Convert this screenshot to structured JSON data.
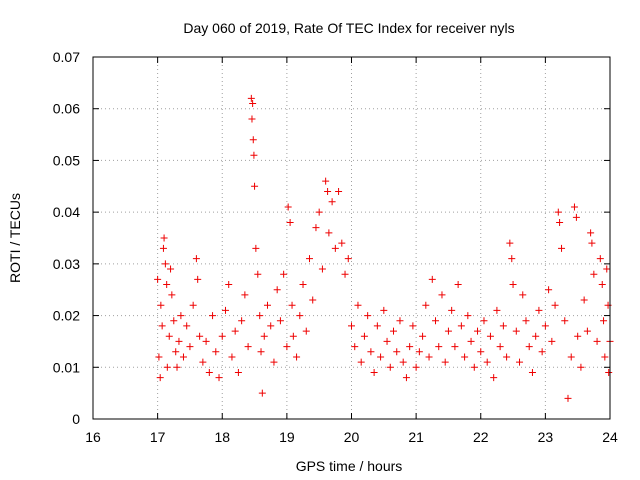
{
  "chart_data": {
    "type": "scatter",
    "title": "Day 060 of 2019, Rate Of TEC Index for receiver nyls",
    "xlabel": "GPS time / hours",
    "ylabel": "ROTI / TECUs",
    "xlim": [
      16,
      24
    ],
    "ylim": [
      0,
      0.07
    ],
    "x_ticks": [
      "16",
      "17",
      "18",
      "19",
      "20",
      "21",
      "22",
      "23",
      "24"
    ],
    "y_ticks": [
      "0",
      "0.01",
      "0.02",
      "0.03",
      "0.04",
      "0.05",
      "0.06",
      "0.07"
    ],
    "grid": true,
    "marker": "+",
    "color": "#ee0000",
    "series": [
      {
        "name": "ROTI",
        "points": [
          [
            17.0,
            0.027
          ],
          [
            17.02,
            0.012
          ],
          [
            17.04,
            0.008
          ],
          [
            17.05,
            0.022
          ],
          [
            17.07,
            0.018
          ],
          [
            17.09,
            0.033
          ],
          [
            17.1,
            0.035
          ],
          [
            17.12,
            0.03
          ],
          [
            17.14,
            0.026
          ],
          [
            17.15,
            0.01
          ],
          [
            17.18,
            0.016
          ],
          [
            17.2,
            0.029
          ],
          [
            17.22,
            0.024
          ],
          [
            17.25,
            0.019
          ],
          [
            17.28,
            0.013
          ],
          [
            17.3,
            0.01
          ],
          [
            17.33,
            0.015
          ],
          [
            17.36,
            0.02
          ],
          [
            17.4,
            0.012
          ],
          [
            17.45,
            0.018
          ],
          [
            17.5,
            0.014
          ],
          [
            17.55,
            0.022
          ],
          [
            17.6,
            0.031
          ],
          [
            17.62,
            0.027
          ],
          [
            17.65,
            0.016
          ],
          [
            17.7,
            0.011
          ],
          [
            17.75,
            0.015
          ],
          [
            17.8,
            0.009
          ],
          [
            17.85,
            0.02
          ],
          [
            17.9,
            0.013
          ],
          [
            17.95,
            0.008
          ],
          [
            18.0,
            0.016
          ],
          [
            18.05,
            0.021
          ],
          [
            18.1,
            0.026
          ],
          [
            18.15,
            0.012
          ],
          [
            18.2,
            0.017
          ],
          [
            18.25,
            0.009
          ],
          [
            18.3,
            0.019
          ],
          [
            18.35,
            0.024
          ],
          [
            18.4,
            0.014
          ],
          [
            18.45,
            0.062
          ],
          [
            18.46,
            0.058
          ],
          [
            18.47,
            0.061
          ],
          [
            18.48,
            0.054
          ],
          [
            18.49,
            0.051
          ],
          [
            18.5,
            0.045
          ],
          [
            18.52,
            0.033
          ],
          [
            18.55,
            0.028
          ],
          [
            18.58,
            0.02
          ],
          [
            18.6,
            0.013
          ],
          [
            18.62,
            0.005
          ],
          [
            18.65,
            0.016
          ],
          [
            18.7,
            0.022
          ],
          [
            18.75,
            0.018
          ],
          [
            18.8,
            0.011
          ],
          [
            18.85,
            0.025
          ],
          [
            18.9,
            0.019
          ],
          [
            18.95,
            0.028
          ],
          [
            19.0,
            0.014
          ],
          [
            19.02,
            0.041
          ],
          [
            19.05,
            0.038
          ],
          [
            19.08,
            0.022
          ],
          [
            19.1,
            0.016
          ],
          [
            19.15,
            0.012
          ],
          [
            19.2,
            0.02
          ],
          [
            19.25,
            0.026
          ],
          [
            19.3,
            0.017
          ],
          [
            19.35,
            0.031
          ],
          [
            19.4,
            0.023
          ],
          [
            19.45,
            0.037
          ],
          [
            19.5,
            0.04
          ],
          [
            19.55,
            0.029
          ],
          [
            19.6,
            0.046
          ],
          [
            19.63,
            0.044
          ],
          [
            19.65,
            0.036
          ],
          [
            19.7,
            0.042
          ],
          [
            19.75,
            0.033
          ],
          [
            19.8,
            0.044
          ],
          [
            19.85,
            0.034
          ],
          [
            19.9,
            0.028
          ],
          [
            19.95,
            0.031
          ],
          [
            20.0,
            0.018
          ],
          [
            20.05,
            0.014
          ],
          [
            20.1,
            0.022
          ],
          [
            20.15,
            0.011
          ],
          [
            20.2,
            0.016
          ],
          [
            20.25,
            0.02
          ],
          [
            20.3,
            0.013
          ],
          [
            20.35,
            0.009
          ],
          [
            20.4,
            0.018
          ],
          [
            20.45,
            0.012
          ],
          [
            20.5,
            0.021
          ],
          [
            20.55,
            0.015
          ],
          [
            20.6,
            0.01
          ],
          [
            20.65,
            0.017
          ],
          [
            20.7,
            0.013
          ],
          [
            20.75,
            0.019
          ],
          [
            20.8,
            0.011
          ],
          [
            20.85,
            0.008
          ],
          [
            20.9,
            0.014
          ],
          [
            20.95,
            0.018
          ],
          [
            21.0,
            0.01
          ],
          [
            21.05,
            0.013
          ],
          [
            21.1,
            0.016
          ],
          [
            21.15,
            0.022
          ],
          [
            21.2,
            0.012
          ],
          [
            21.25,
            0.027
          ],
          [
            21.3,
            0.019
          ],
          [
            21.35,
            0.014
          ],
          [
            21.4,
            0.024
          ],
          [
            21.45,
            0.011
          ],
          [
            21.5,
            0.017
          ],
          [
            21.55,
            0.021
          ],
          [
            21.6,
            0.014
          ],
          [
            21.65,
            0.026
          ],
          [
            21.7,
            0.018
          ],
          [
            21.75,
            0.012
          ],
          [
            21.8,
            0.02
          ],
          [
            21.85,
            0.015
          ],
          [
            21.9,
            0.01
          ],
          [
            21.95,
            0.017
          ],
          [
            22.0,
            0.013
          ],
          [
            22.05,
            0.019
          ],
          [
            22.1,
            0.011
          ],
          [
            22.15,
            0.016
          ],
          [
            22.2,
            0.008
          ],
          [
            22.25,
            0.021
          ],
          [
            22.3,
            0.014
          ],
          [
            22.35,
            0.018
          ],
          [
            22.4,
            0.012
          ],
          [
            22.45,
            0.034
          ],
          [
            22.48,
            0.031
          ],
          [
            22.5,
            0.026
          ],
          [
            22.55,
            0.017
          ],
          [
            22.6,
            0.011
          ],
          [
            22.65,
            0.024
          ],
          [
            22.7,
            0.019
          ],
          [
            22.75,
            0.014
          ],
          [
            22.8,
            0.009
          ],
          [
            22.85,
            0.016
          ],
          [
            22.9,
            0.021
          ],
          [
            22.95,
            0.013
          ],
          [
            23.0,
            0.018
          ],
          [
            23.05,
            0.025
          ],
          [
            23.1,
            0.015
          ],
          [
            23.15,
            0.022
          ],
          [
            23.2,
            0.04
          ],
          [
            23.22,
            0.038
          ],
          [
            23.25,
            0.033
          ],
          [
            23.3,
            0.019
          ],
          [
            23.35,
            0.004
          ],
          [
            23.4,
            0.012
          ],
          [
            23.45,
            0.041
          ],
          [
            23.48,
            0.039
          ],
          [
            23.5,
            0.016
          ],
          [
            23.55,
            0.01
          ],
          [
            23.6,
            0.023
          ],
          [
            23.65,
            0.017
          ],
          [
            23.7,
            0.036
          ],
          [
            23.72,
            0.034
          ],
          [
            23.75,
            0.028
          ],
          [
            23.8,
            0.015
          ],
          [
            23.85,
            0.031
          ],
          [
            23.88,
            0.026
          ],
          [
            23.9,
            0.019
          ],
          [
            23.92,
            0.012
          ],
          [
            23.95,
            0.029
          ],
          [
            23.97,
            0.022
          ],
          [
            23.98,
            0.009
          ],
          [
            24.0,
            0.015
          ]
        ]
      }
    ]
  }
}
